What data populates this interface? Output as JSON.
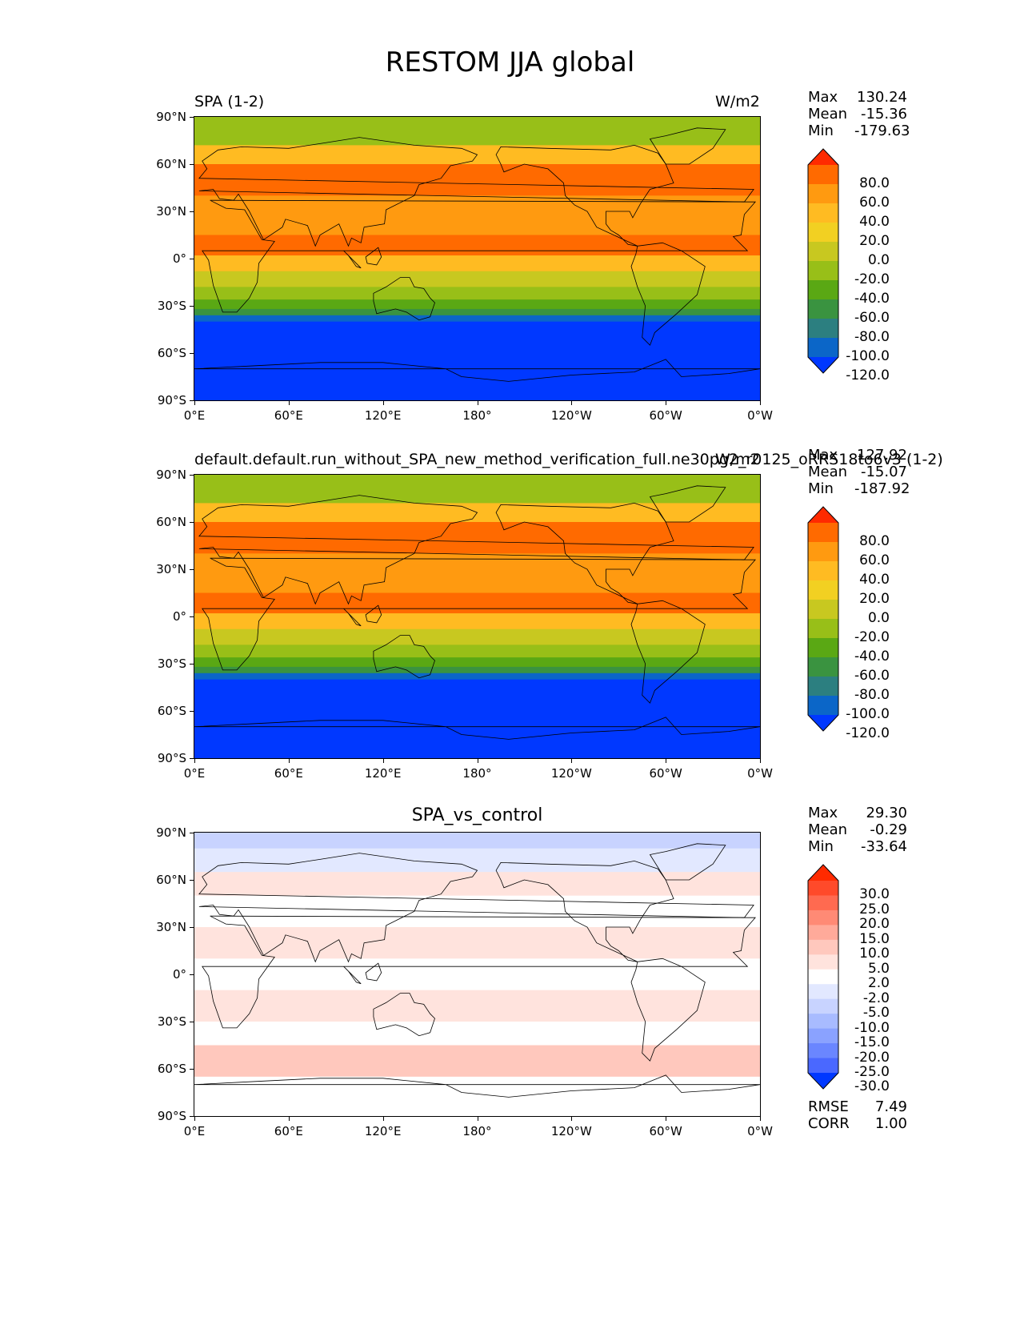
{
  "figure_title": "RESTOM JJA global",
  "axes": {
    "lat_ticks": [
      "90°N",
      "60°N",
      "30°N",
      "0°",
      "30°S",
      "60°S",
      "90°S"
    ],
    "lon_ticks": [
      "0°E",
      "60°E",
      "120°E",
      "180°",
      "120°W",
      "60°W",
      "0°W"
    ]
  },
  "panels": [
    {
      "left_title": "SPA (1-2)",
      "right_title": "W/m2",
      "center_title": "",
      "stats": [
        {
          "label": "Max",
          "value": "130.24"
        },
        {
          "label": "Mean",
          "value": "-15.36"
        },
        {
          "label": "Min",
          "value": "-179.63"
        }
      ],
      "colorbar": {
        "labels": [
          "80.0",
          "60.0",
          "40.0",
          "20.0",
          "0.0",
          "-20.0",
          "-40.0",
          "-60.0",
          "-80.0",
          "-100.0",
          "-120.0"
        ],
        "colors": [
          "#ff2a00",
          "#ff6a00",
          "#ff9a10",
          "#ffbb22",
          "#f2d022",
          "#c8c820",
          "#98bf18",
          "#5aa814",
          "#3a9340",
          "#2c7f80",
          "#0b66c8",
          "#0038ff"
        ]
      },
      "bands": [
        {
          "lat_top": 90,
          "lat_bottom": 72,
          "color": "#98bf18"
        },
        {
          "lat_top": 72,
          "lat_bottom": 60,
          "color": "#ffbb22"
        },
        {
          "lat_top": 60,
          "lat_bottom": 40,
          "color": "#ff6a00"
        },
        {
          "lat_top": 40,
          "lat_bottom": 15,
          "color": "#ff9a10"
        },
        {
          "lat_top": 15,
          "lat_bottom": 2,
          "color": "#ff6a00"
        },
        {
          "lat_top": 2,
          "lat_bottom": -8,
          "color": "#ffbb22"
        },
        {
          "lat_top": -8,
          "lat_bottom": -18,
          "color": "#c8c820"
        },
        {
          "lat_top": -18,
          "lat_bottom": -26,
          "color": "#98bf18"
        },
        {
          "lat_top": -26,
          "lat_bottom": -32,
          "color": "#5aa814"
        },
        {
          "lat_top": -32,
          "lat_bottom": -36,
          "color": "#3a9340"
        },
        {
          "lat_top": -36,
          "lat_bottom": -40,
          "color": "#0b66c8"
        },
        {
          "lat_top": -40,
          "lat_bottom": -90,
          "color": "#0038ff"
        }
      ]
    },
    {
      "left_title": "default.default.run_without_SPA_new_method_verification_full.ne30pg2_r0125_oRRS18to6v3 (1-2)",
      "right_title": "W/m2",
      "center_title": "",
      "stats": [
        {
          "label": "Max",
          "value": "127.92"
        },
        {
          "label": "Mean",
          "value": "-15.07"
        },
        {
          "label": "Min",
          "value": "-187.92"
        }
      ],
      "colorbar": {
        "labels": [
          "80.0",
          "60.0",
          "40.0",
          "20.0",
          "0.0",
          "-20.0",
          "-40.0",
          "-60.0",
          "-80.0",
          "-100.0",
          "-120.0"
        ],
        "colors": [
          "#ff2a00",
          "#ff6a00",
          "#ff9a10",
          "#ffbb22",
          "#f2d022",
          "#c8c820",
          "#98bf18",
          "#5aa814",
          "#3a9340",
          "#2c7f80",
          "#0b66c8",
          "#0038ff"
        ]
      },
      "bands": [
        {
          "lat_top": 90,
          "lat_bottom": 72,
          "color": "#98bf18"
        },
        {
          "lat_top": 72,
          "lat_bottom": 60,
          "color": "#ffbb22"
        },
        {
          "lat_top": 60,
          "lat_bottom": 40,
          "color": "#ff6a00"
        },
        {
          "lat_top": 40,
          "lat_bottom": 15,
          "color": "#ff9a10"
        },
        {
          "lat_top": 15,
          "lat_bottom": 2,
          "color": "#ff6a00"
        },
        {
          "lat_top": 2,
          "lat_bottom": -8,
          "color": "#ffbb22"
        },
        {
          "lat_top": -8,
          "lat_bottom": -18,
          "color": "#c8c820"
        },
        {
          "lat_top": -18,
          "lat_bottom": -26,
          "color": "#98bf18"
        },
        {
          "lat_top": -26,
          "lat_bottom": -32,
          "color": "#5aa814"
        },
        {
          "lat_top": -32,
          "lat_bottom": -36,
          "color": "#3a9340"
        },
        {
          "lat_top": -36,
          "lat_bottom": -40,
          "color": "#0b66c8"
        },
        {
          "lat_top": -40,
          "lat_bottom": -90,
          "color": "#0038ff"
        }
      ]
    },
    {
      "left_title": "",
      "right_title": "",
      "center_title": "SPA_vs_control",
      "stats": [
        {
          "label": "Max",
          "value": "29.30"
        },
        {
          "label": "Mean",
          "value": "-0.29"
        },
        {
          "label": "Min",
          "value": "-33.64"
        }
      ],
      "colorbar": {
        "labels": [
          "30.0",
          "25.0",
          "20.0",
          "15.0",
          "10.0",
          "5.0",
          "2.0",
          "-2.0",
          "-5.0",
          "-10.0",
          "-15.0",
          "-20.0",
          "-25.0",
          "-30.0"
        ],
        "colors": [
          "#ff2a00",
          "#ff4a2a",
          "#ff6a50",
          "#ff8a75",
          "#ffaa9a",
          "#ffc8bd",
          "#ffe3dd",
          "#ffffff",
          "#e2e8ff",
          "#c8d3ff",
          "#a8bbff",
          "#8aa2ff",
          "#6a86ff",
          "#4a68ff",
          "#0038ff"
        ]
      },
      "bands": [
        {
          "lat_top": 90,
          "lat_bottom": 80,
          "color": "#c8d3ff"
        },
        {
          "lat_top": 80,
          "lat_bottom": 65,
          "color": "#e2e8ff"
        },
        {
          "lat_top": 65,
          "lat_bottom": 50,
          "color": "#ffe3dd"
        },
        {
          "lat_top": 50,
          "lat_bottom": 30,
          "color": "#ffffff"
        },
        {
          "lat_top": 30,
          "lat_bottom": 10,
          "color": "#ffe3dd"
        },
        {
          "lat_top": 10,
          "lat_bottom": -10,
          "color": "#ffffff"
        },
        {
          "lat_top": -10,
          "lat_bottom": -30,
          "color": "#ffe3dd"
        },
        {
          "lat_top": -30,
          "lat_bottom": -45,
          "color": "#ffffff"
        },
        {
          "lat_top": -45,
          "lat_bottom": -65,
          "color": "#ffc8bd"
        },
        {
          "lat_top": -65,
          "lat_bottom": -90,
          "color": "#ffffff"
        }
      ]
    }
  ],
  "diff_metrics": [
    {
      "label": "RMSE",
      "value": "7.49"
    },
    {
      "label": "CORR",
      "value": "1.00"
    }
  ]
}
